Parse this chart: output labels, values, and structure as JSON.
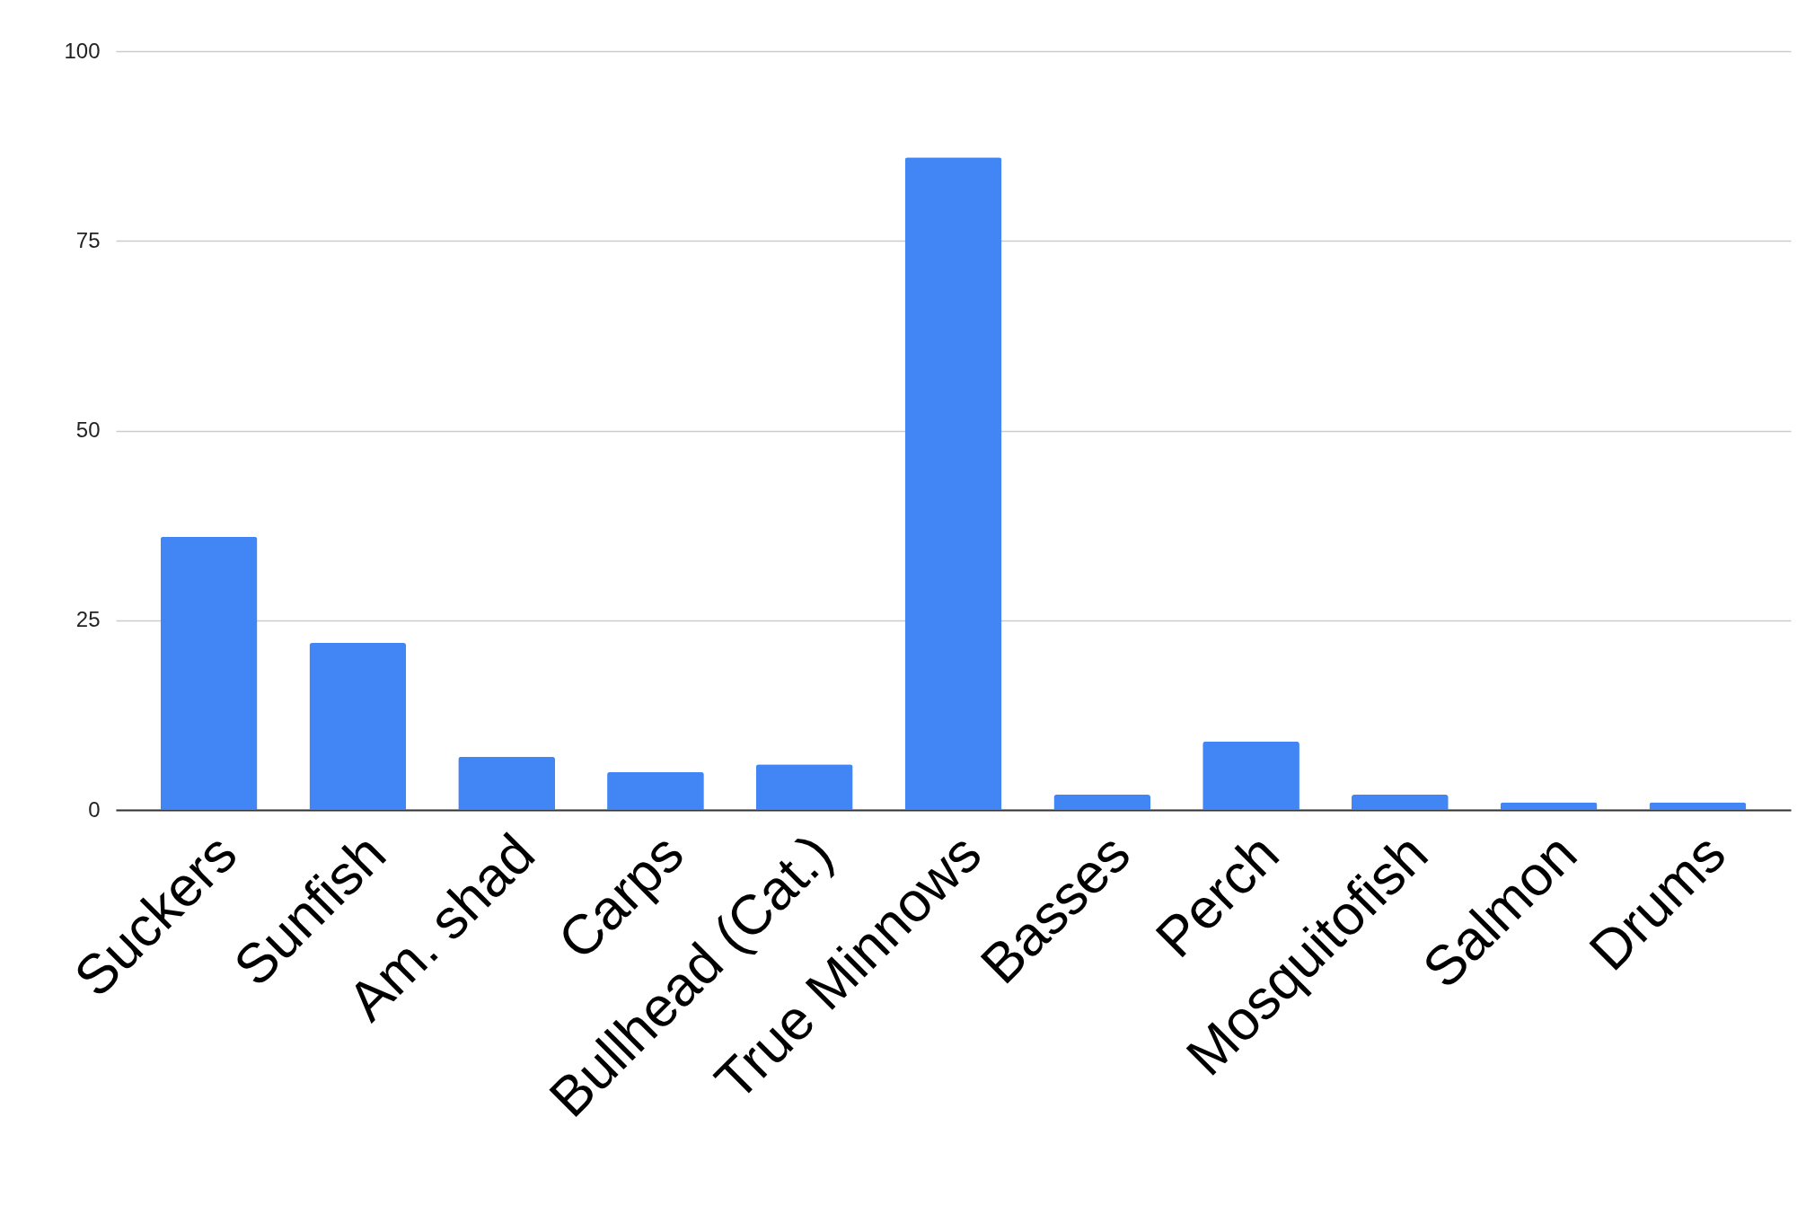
{
  "chart_data": {
    "type": "bar",
    "categories": [
      "Suckers",
      "Sunfish",
      "Am. shad",
      "Carps",
      "Bullhead (Cat.)",
      "True Minnows",
      "Basses",
      "Perch",
      "Mosquitofish",
      "Salmon",
      "Drums"
    ],
    "values": [
      36,
      22,
      7,
      5,
      6,
      86,
      2,
      9,
      2,
      1,
      1
    ],
    "color": "#4285f4",
    "ylim": [
      0,
      100
    ],
    "yticks": [
      0,
      25,
      50,
      75,
      100
    ],
    "grid": "y"
  }
}
